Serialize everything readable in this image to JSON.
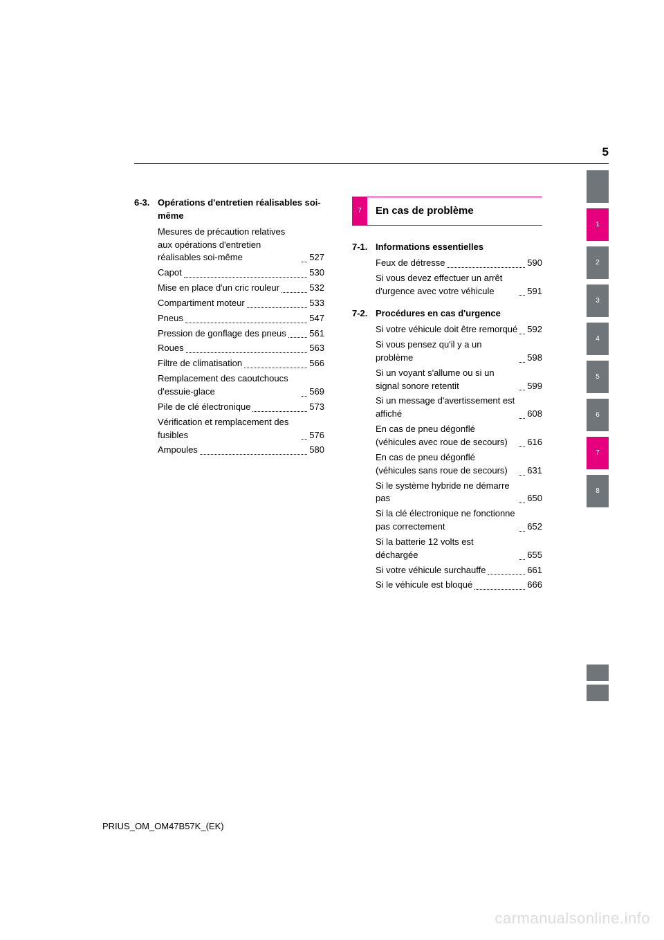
{
  "page_number": "5",
  "colors": {
    "accent": "#e6007e",
    "muted_tab": "#6f7578",
    "top_tab": "#6f7578",
    "text": "#000000",
    "white": "#ffffff",
    "watermark": "#dcdcdc"
  },
  "left_column": {
    "section_number": "6-3.",
    "section_title": "Opérations d'entretien réalisables soi-même",
    "entries": [
      {
        "label": "Mesures de précaution relatives aux opérations d'entretien réalisables soi-même",
        "page": "527"
      },
      {
        "label": "Capot",
        "page": "530"
      },
      {
        "label": "Mise en place d'un cric rouleur",
        "page": "532"
      },
      {
        "label": "Compartiment moteur",
        "page": "533"
      },
      {
        "label": "Pneus",
        "page": "547"
      },
      {
        "label": "Pression de gonflage des pneus",
        "page": "561"
      },
      {
        "label": "Roues",
        "page": "563"
      },
      {
        "label": "Filtre de climatisation",
        "page": "566"
      },
      {
        "label": "Remplacement des caoutchoucs d'essuie-glace",
        "page": "569"
      },
      {
        "label": "Pile de clé électronique",
        "page": "573"
      },
      {
        "label": "Vérification et remplacement des fusibles",
        "page": "576"
      },
      {
        "label": "Ampoules",
        "page": "580"
      }
    ]
  },
  "right_column": {
    "chapter_number": "7",
    "chapter_title": "En cas de problème",
    "sections": [
      {
        "section_number": "7-1.",
        "section_title": "Informations essentielles",
        "entries": [
          {
            "label": "Feux de détresse",
            "page": "590"
          },
          {
            "label": "Si vous devez effectuer un arrêt d'urgence avec votre véhicule",
            "page": "591"
          }
        ]
      },
      {
        "section_number": "7-2.",
        "section_title": "Procédures en cas d'urgence",
        "entries": [
          {
            "label": "Si votre véhicule doit être remorqué",
            "page": "592"
          },
          {
            "label": "Si vous pensez qu'il y a un problème",
            "page": "598"
          },
          {
            "label": "Si un voyant s'allume ou si un signal sonore retentit",
            "page": "599"
          },
          {
            "label": "Si un message d'avertissement est affiché",
            "page": "608"
          },
          {
            "label": "En cas de pneu dégonflé (véhicules avec roue de secours)",
            "page": "616"
          },
          {
            "label": "En cas de pneu dégonflé (véhicules sans roue de secours)",
            "page": "631"
          },
          {
            "label": "Si le système hybride ne démarre pas",
            "page": "650"
          },
          {
            "label": "Si la clé électronique ne fonctionne pas correctement",
            "page": "652"
          },
          {
            "label": "Si la batterie 12 volts est déchargée",
            "page": "655"
          },
          {
            "label": "Si votre véhicule surchauffe",
            "page": "661"
          },
          {
            "label": "Si le véhicule est bloqué",
            "page": "666"
          }
        ]
      }
    ]
  },
  "side_tabs": [
    {
      "label": "1",
      "active": true
    },
    {
      "label": "2",
      "active": false
    },
    {
      "label": "3",
      "active": false
    },
    {
      "label": "4",
      "active": false
    },
    {
      "label": "5",
      "active": false
    },
    {
      "label": "6",
      "active": false
    },
    {
      "label": "7",
      "active": true
    },
    {
      "label": "8",
      "active": false
    }
  ],
  "footer": "PRIUS_OM_OM47B57K_(EK)",
  "watermark": "carmanualsonline.info"
}
